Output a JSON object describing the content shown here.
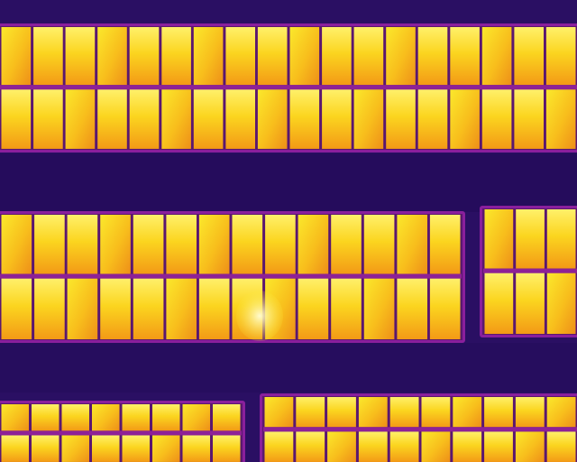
{
  "image": {
    "kind": "thermal-infrared-photo",
    "subject": "solar-panel-rows",
    "palette": {
      "ground_dark": "#230c58",
      "ground": "#2e1268",
      "frame_purple": "#7a1c9a",
      "frame_magenta": "#b12f93",
      "cell_orange": "#f49b14",
      "cell_yellow": "#fbe21f",
      "cell_hot": "#fff7a8",
      "cell_divider": "#5a176f"
    }
  }
}
